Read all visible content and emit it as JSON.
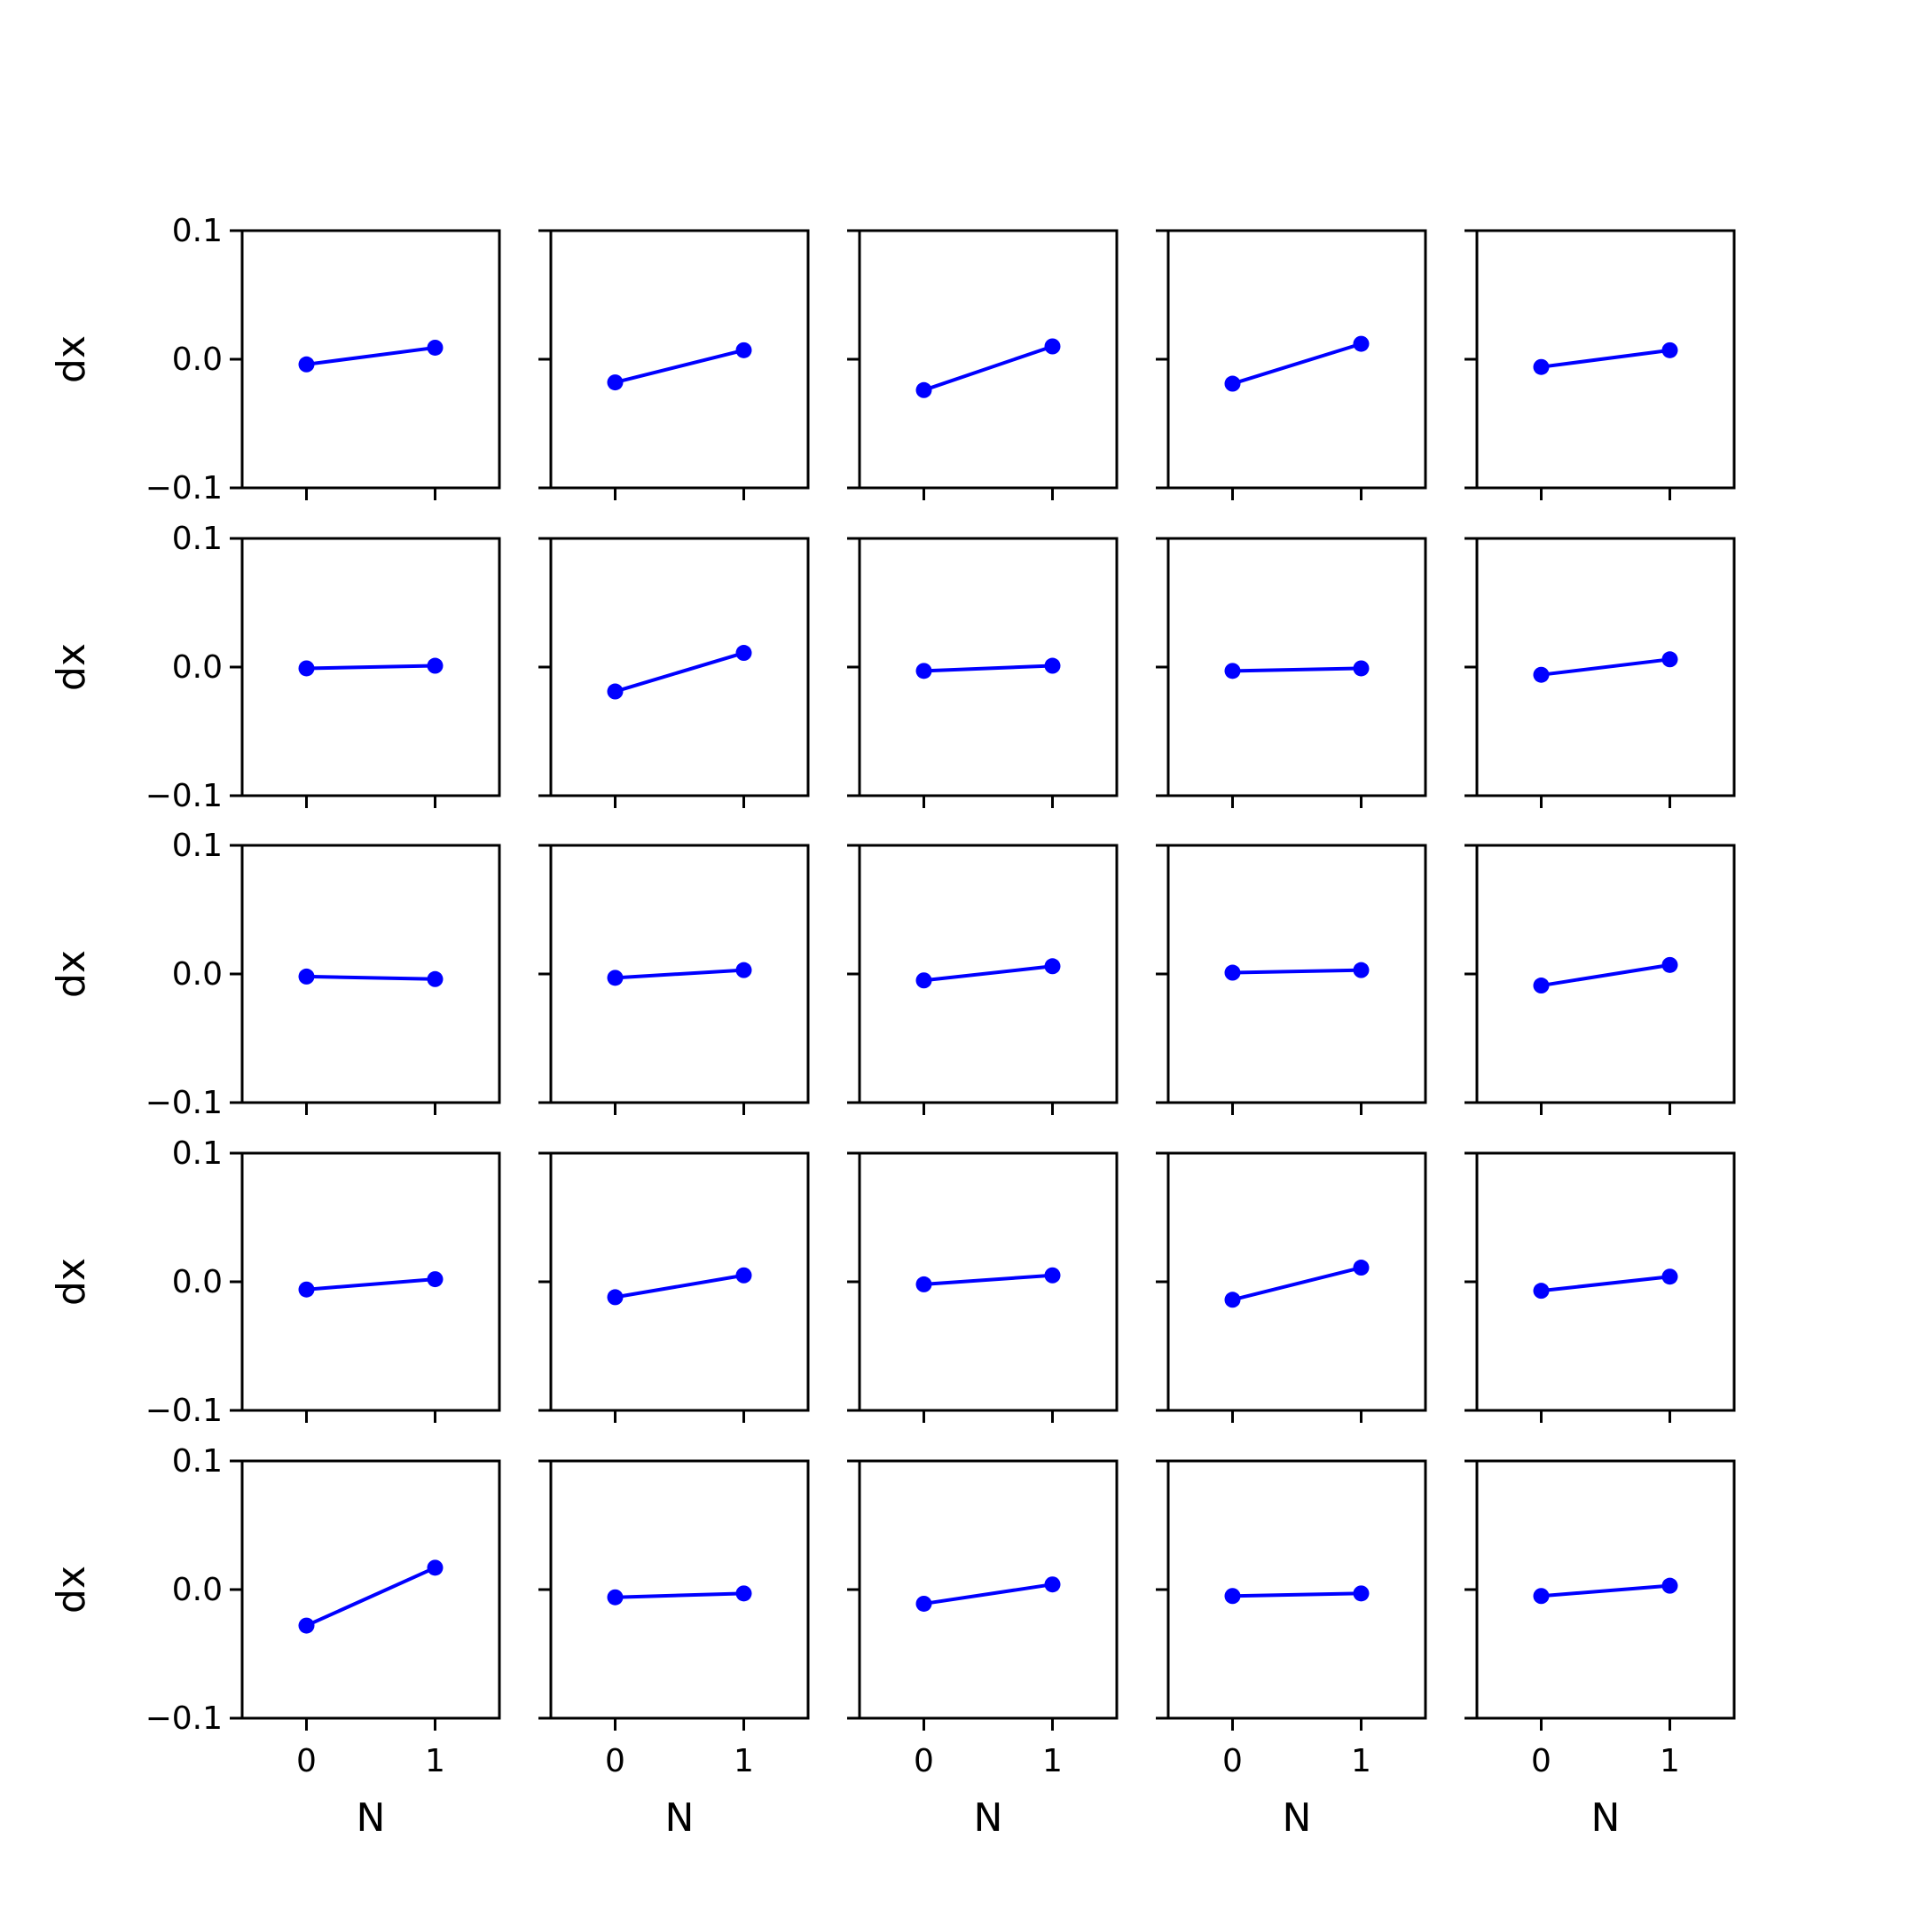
{
  "chart_data": {
    "type": "line",
    "layout": "5x5 grid of subplots",
    "shared_axes": true,
    "xlabel": "N",
    "ylabel": "dx",
    "xlim": [
      -0.5,
      1.5
    ],
    "ylim": [
      -0.1,
      0.1
    ],
    "xticks": [
      "0",
      "1"
    ],
    "yticks": [
      "−0.1",
      "0.0",
      "0.1"
    ],
    "line_color": "#0000ff",
    "marker": "circle",
    "x": [
      0,
      1
    ],
    "panels": [
      [
        [
          -0.004,
          0.009
        ],
        [
          -0.018,
          0.007
        ],
        [
          -0.024,
          0.01
        ],
        [
          -0.019,
          0.012
        ],
        [
          -0.006,
          0.007
        ]
      ],
      [
        [
          -0.001,
          0.001
        ],
        [
          -0.019,
          0.011
        ],
        [
          -0.003,
          0.001
        ],
        [
          -0.003,
          -0.001
        ],
        [
          -0.006,
          0.006
        ]
      ],
      [
        [
          -0.002,
          -0.004
        ],
        [
          -0.003,
          0.003
        ],
        [
          -0.005,
          0.006
        ],
        [
          0.001,
          0.003
        ],
        [
          -0.009,
          0.007
        ]
      ],
      [
        [
          -0.006,
          0.002
        ],
        [
          -0.012,
          0.005
        ],
        [
          -0.002,
          0.005
        ],
        [
          -0.014,
          0.011
        ],
        [
          -0.007,
          0.004
        ]
      ],
      [
        [
          -0.028,
          0.017
        ],
        [
          -0.006,
          -0.003
        ],
        [
          -0.011,
          0.004
        ],
        [
          -0.005,
          -0.003
        ],
        [
          -0.005,
          0.003
        ]
      ]
    ]
  }
}
